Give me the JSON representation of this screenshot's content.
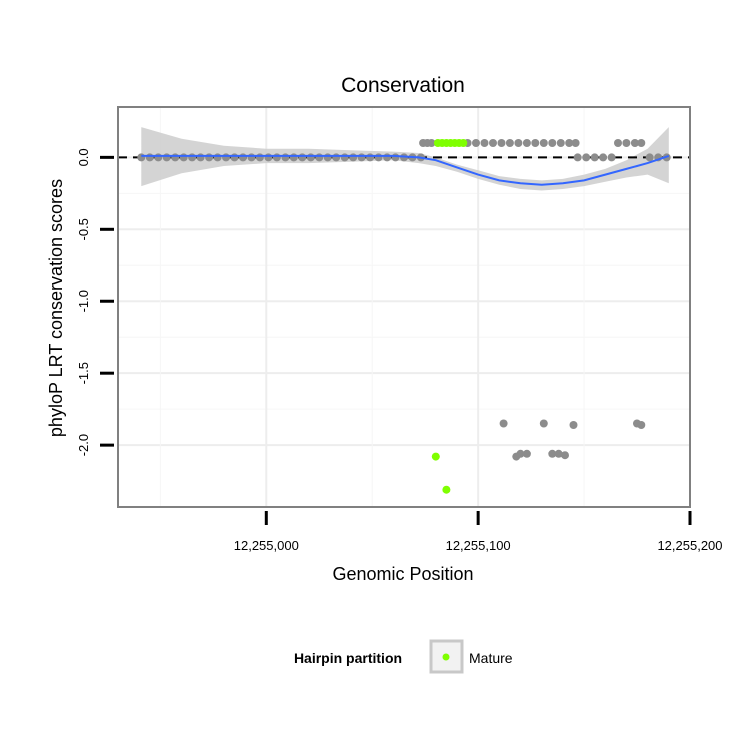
{
  "chart_data": {
    "type": "scatter",
    "title": "Conservation",
    "xlabel": "Genomic Position",
    "ylabel": "phyloP LRT conservation scores",
    "xlim": [
      12254930,
      12255200
    ],
    "ylim": [
      -2.43,
      0.35
    ],
    "x_ticks": [
      12255000,
      12255100,
      12255200
    ],
    "x_tick_labels": [
      "12,255,000",
      "12,255,100",
      "12,255,200"
    ],
    "y_ticks": [
      0,
      -0.5,
      -1,
      -1.5,
      -2
    ],
    "y_tick_labels": [
      "0.0",
      "-0.5",
      "-1.0",
      "-1.5",
      "-2.0"
    ],
    "reference_line_y": 0,
    "grid": true,
    "legend": {
      "title": "Hairpin partition",
      "entries": [
        {
          "label": "Mature",
          "color": "#7FFF00"
        }
      ],
      "position": "bottom"
    },
    "colors": {
      "other_points": "#8c8c8c",
      "mature_points": "#7FFF00",
      "smooth_line": "#3366FF",
      "confidence_band": "#cccccc"
    },
    "series": [
      {
        "name": "Other",
        "points": [
          [
            12254941,
            0
          ],
          [
            12254945,
            0
          ],
          [
            12254949,
            0
          ],
          [
            12254953,
            0
          ],
          [
            12254957,
            0
          ],
          [
            12254961,
            0
          ],
          [
            12254965,
            0
          ],
          [
            12254969,
            0
          ],
          [
            12254973,
            0
          ],
          [
            12254977,
            0
          ],
          [
            12254981,
            0
          ],
          [
            12254985,
            0
          ],
          [
            12254989,
            0
          ],
          [
            12254993,
            0
          ],
          [
            12254997,
            0
          ],
          [
            12255001,
            0
          ],
          [
            12255005,
            0
          ],
          [
            12255009,
            0
          ],
          [
            12255013,
            0
          ],
          [
            12255017,
            0
          ],
          [
            12255021,
            0
          ],
          [
            12255025,
            0
          ],
          [
            12255029,
            0
          ],
          [
            12255033,
            0
          ],
          [
            12255037,
            0
          ],
          [
            12255041,
            0
          ],
          [
            12255045,
            0
          ],
          [
            12255049,
            0
          ],
          [
            12255053,
            0
          ],
          [
            12255057,
            0
          ],
          [
            12255061,
            0
          ],
          [
            12255065,
            0
          ],
          [
            12255069,
            0
          ],
          [
            12255073,
            0
          ],
          [
            12255074,
            0.1
          ],
          [
            12255076,
            0.1
          ],
          [
            12255078,
            0.1
          ],
          [
            12255095,
            0.1
          ],
          [
            12255099,
            0.1
          ],
          [
            12255103,
            0.1
          ],
          [
            12255107,
            0.1
          ],
          [
            12255111,
            0.1
          ],
          [
            12255115,
            0.1
          ],
          [
            12255119,
            0.1
          ],
          [
            12255123,
            0.1
          ],
          [
            12255127,
            0.1
          ],
          [
            12255131,
            0.1
          ],
          [
            12255135,
            0.1
          ],
          [
            12255139,
            0.1
          ],
          [
            12255143,
            0.1
          ],
          [
            12255146,
            0.1
          ],
          [
            12255147,
            0
          ],
          [
            12255151,
            0
          ],
          [
            12255155,
            0
          ],
          [
            12255159,
            0
          ],
          [
            12255163,
            0
          ],
          [
            12255166,
            0.1
          ],
          [
            12255170,
            0.1
          ],
          [
            12255174,
            0.1
          ],
          [
            12255177,
            0.1
          ],
          [
            12255181,
            0
          ],
          [
            12255185,
            0
          ],
          [
            12255189,
            0
          ],
          [
            12255112,
            -1.85
          ],
          [
            12255118,
            -2.08
          ],
          [
            12255120,
            -2.06
          ],
          [
            12255123,
            -2.06
          ],
          [
            12255131,
            -1.85
          ],
          [
            12255135,
            -2.06
          ],
          [
            12255138,
            -2.06
          ],
          [
            12255141,
            -2.07
          ],
          [
            12255145,
            -1.86
          ],
          [
            12255175,
            -1.85
          ],
          [
            12255177,
            -1.86
          ]
        ]
      },
      {
        "name": "Mature",
        "points": [
          [
            12255081,
            0.1
          ],
          [
            12255083,
            0.1
          ],
          [
            12255085,
            0.1
          ],
          [
            12255087,
            0.1
          ],
          [
            12255089,
            0.1
          ],
          [
            12255091,
            0.1
          ],
          [
            12255093,
            0.1
          ],
          [
            12255080,
            -2.08
          ],
          [
            12255085,
            -2.31
          ]
        ]
      }
    ],
    "smooth_line": {
      "points": [
        [
          12254941,
          0.01
        ],
        [
          12254960,
          0.01
        ],
        [
          12254980,
          0.01
        ],
        [
          12255000,
          0.01
        ],
        [
          12255020,
          0.01
        ],
        [
          12255040,
          0.01
        ],
        [
          12255060,
          0.01
        ],
        [
          12255072,
          0.0
        ],
        [
          12255080,
          -0.02
        ],
        [
          12255090,
          -0.07
        ],
        [
          12255100,
          -0.12
        ],
        [
          12255110,
          -0.16
        ],
        [
          12255120,
          -0.18
        ],
        [
          12255130,
          -0.19
        ],
        [
          12255140,
          -0.18
        ],
        [
          12255150,
          -0.16
        ],
        [
          12255160,
          -0.12
        ],
        [
          12255170,
          -0.08
        ],
        [
          12255180,
          -0.04
        ],
        [
          12255190,
          0.01
        ]
      ]
    },
    "confidence_band": {
      "upper": [
        [
          12254941,
          0.21
        ],
        [
          12254960,
          0.13
        ],
        [
          12254980,
          0.08
        ],
        [
          12255000,
          0.06
        ],
        [
          12255020,
          0.06
        ],
        [
          12255040,
          0.05
        ],
        [
          12255060,
          0.04
        ],
        [
          12255072,
          0.03
        ],
        [
          12255080,
          0.0
        ],
        [
          12255090,
          -0.05
        ],
        [
          12255100,
          -0.09
        ],
        [
          12255110,
          -0.13
        ],
        [
          12255120,
          -0.15
        ],
        [
          12255130,
          -0.16
        ],
        [
          12255140,
          -0.15
        ],
        [
          12255150,
          -0.12
        ],
        [
          12255160,
          -0.08
        ],
        [
          12255170,
          -0.02
        ],
        [
          12255180,
          0.06
        ],
        [
          12255190,
          0.21
        ]
      ],
      "lower": [
        [
          12254941,
          -0.2
        ],
        [
          12254960,
          -0.11
        ],
        [
          12254980,
          -0.06
        ],
        [
          12255000,
          -0.04
        ],
        [
          12255020,
          -0.04
        ],
        [
          12255040,
          -0.03
        ],
        [
          12255060,
          -0.02
        ],
        [
          12255072,
          -0.04
        ],
        [
          12255080,
          -0.06
        ],
        [
          12255090,
          -0.1
        ],
        [
          12255100,
          -0.15
        ],
        [
          12255110,
          -0.19
        ],
        [
          12255120,
          -0.22
        ],
        [
          12255130,
          -0.23
        ],
        [
          12255140,
          -0.22
        ],
        [
          12255150,
          -0.2
        ],
        [
          12255160,
          -0.17
        ],
        [
          12255170,
          -0.14
        ],
        [
          12255180,
          -0.12
        ],
        [
          12255190,
          -0.18
        ]
      ]
    }
  }
}
